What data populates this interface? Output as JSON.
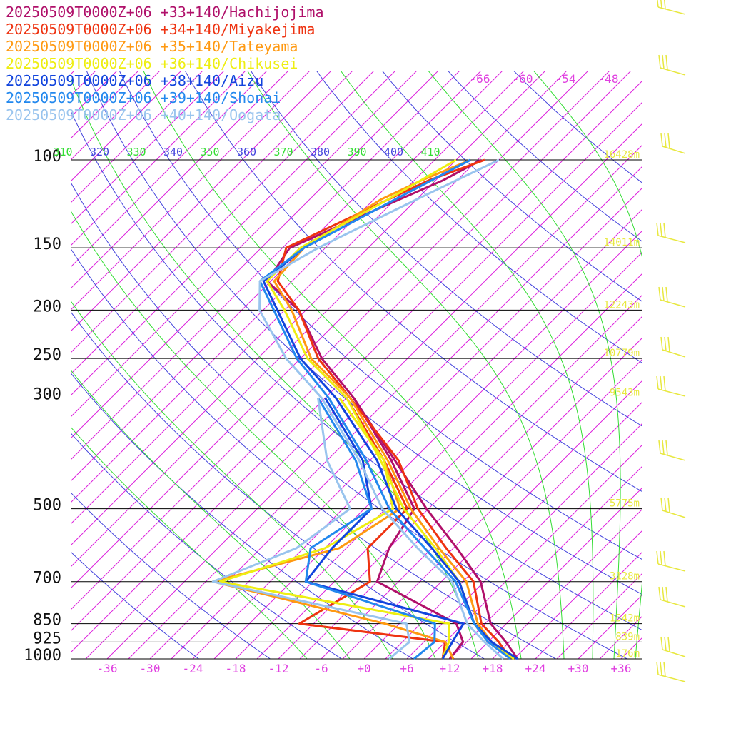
{
  "colors": {
    "isobar": "#000000",
    "isotherm": "#dd22dd",
    "dry_adiabat": "#4444dd",
    "moist_adiabat": "#33dd33",
    "height_label": "#e8e840",
    "wind_barb": "#e8e840"
  },
  "chart_data": {
    "type": "line",
    "subtype": "skew-T log-p sounding",
    "legend": [
      {
        "text": "20250509T0000Z+06 +33+140/Hachijojima",
        "color": "#b0106a"
      },
      {
        "text": "20250509T0000Z+06 +34+140/Miyakejima",
        "color": "#ee3311"
      },
      {
        "text": "20250509T0000Z+06 +35+140/Tateyama",
        "color": "#ff9911"
      },
      {
        "text": "20250509T0000Z+06 +36+140/Chikusei",
        "color": "#eeee11"
      },
      {
        "text": "20250509T0000Z+06 +38+140/Aizu",
        "color": "#1144dd"
      },
      {
        "text": "20250509T0000Z+06 +39+140/Shonai",
        "color": "#2288ee"
      },
      {
        "text": "20250509T0000Z+06 +40+140/Oogata",
        "color": "#99c4ee"
      }
    ],
    "pressure_levels": [
      {
        "p": 100,
        "label": "100",
        "height": "16428m"
      },
      {
        "p": 150,
        "label": "150",
        "height": "14011m"
      },
      {
        "p": 200,
        "label": "200",
        "height": "12243m"
      },
      {
        "p": 250,
        "label": "250",
        "height": "10779m"
      },
      {
        "p": 300,
        "label": "300",
        "height": "9543m"
      },
      {
        "p": 500,
        "label": "500",
        "height": "5775m"
      },
      {
        "p": 700,
        "label": "700",
        "height": "3128m"
      },
      {
        "p": 850,
        "label": "850",
        "height": "1542m"
      },
      {
        "p": 925,
        "label": "925",
        "height": "839m"
      },
      {
        "p": 1000,
        "label": "1000",
        "height": "176m"
      }
    ],
    "temperature_ticks": [
      "-36",
      "-30",
      "-24",
      "-18",
      "-12",
      "-6",
      "+0",
      "+6",
      "+12",
      "+18",
      "+24",
      "+30",
      "+36"
    ],
    "temperature_tick_values": [
      -36,
      -30,
      -24,
      -18,
      -12,
      -6,
      0,
      6,
      12,
      18,
      24,
      30,
      36
    ],
    "upper_temperature_labels": [
      "-66",
      "-60",
      "-54",
      "-48"
    ],
    "theta_labels": [
      {
        "text": "310",
        "kind": "moist"
      },
      {
        "text": "320",
        "kind": "dry"
      },
      {
        "text": "330",
        "kind": "moist"
      },
      {
        "text": "340",
        "kind": "dry"
      },
      {
        "text": "350",
        "kind": "moist"
      },
      {
        "text": "360",
        "kind": "dry"
      },
      {
        "text": "370",
        "kind": "moist"
      },
      {
        "text": "380",
        "kind": "dry"
      },
      {
        "text": "390",
        "kind": "moist"
      },
      {
        "text": "400",
        "kind": "dry"
      },
      {
        "text": "410",
        "kind": "moist"
      }
    ],
    "x_range_at_1000hPa": [
      -41,
      39
    ],
    "p_range": [
      1000,
      100
    ],
    "series": [
      {
        "name": "Hachijojima",
        "temperature": [
          [
            1000,
            21.5
          ],
          [
            925,
            17.5
          ],
          [
            850,
            12.8
          ],
          [
            700,
            5.5
          ],
          [
            600,
            -2.5
          ],
          [
            500,
            -12.3
          ],
          [
            400,
            -23.5
          ],
          [
            300,
            -38
          ],
          [
            250,
            -48
          ],
          [
            200,
            -58
          ],
          [
            175,
            -66.5
          ],
          [
            150,
            -68
          ],
          [
            125,
            -61
          ],
          [
            110,
            -56
          ],
          [
            100,
            -53.5
          ]
        ],
        "dewpoint": [
          [
            1000,
            12
          ],
          [
            925,
            11.5
          ],
          [
            850,
            8
          ],
          [
            700,
            -9
          ],
          [
            600,
            -12
          ],
          [
            500,
            -14
          ],
          [
            400,
            -24
          ],
          [
            300,
            -38
          ]
        ]
      },
      {
        "name": "Miyakejima",
        "temperature": [
          [
            1000,
            20.5
          ],
          [
            925,
            16.5
          ],
          [
            850,
            11.5
          ],
          [
            700,
            4.5
          ],
          [
            600,
            -4
          ],
          [
            500,
            -13.5
          ],
          [
            400,
            -23
          ],
          [
            300,
            -38.5
          ],
          [
            250,
            -48.5
          ],
          [
            200,
            -58
          ],
          [
            175,
            -65
          ],
          [
            150,
            -68.5
          ],
          [
            110,
            -58
          ],
          [
            100,
            -53
          ]
        ],
        "dewpoint": [
          [
            1000,
            11
          ],
          [
            925,
            9
          ],
          [
            850,
            -14
          ],
          [
            700,
            -10
          ],
          [
            600,
            -15
          ],
          [
            500,
            -15
          ],
          [
            400,
            -25
          ],
          [
            300,
            -39
          ]
        ]
      },
      {
        "name": "Tateyama",
        "temperature": [
          [
            1000,
            20.5
          ],
          [
            925,
            15.5
          ],
          [
            850,
            11
          ],
          [
            700,
            3.5
          ],
          [
            600,
            -5
          ],
          [
            500,
            -14.5
          ],
          [
            400,
            -24.5
          ],
          [
            300,
            -38.5
          ],
          [
            250,
            -49.5
          ],
          [
            200,
            -59
          ],
          [
            175,
            -65.5
          ],
          [
            150,
            -66
          ],
          [
            120,
            -62
          ],
          [
            110,
            -59
          ],
          [
            100,
            -55
          ]
        ],
        "dewpoint": [
          [
            1000,
            12.5
          ],
          [
            925,
            9
          ],
          [
            850,
            -2
          ],
          [
            700,
            -32
          ],
          [
            600,
            -19
          ],
          [
            500,
            -16
          ],
          [
            400,
            -25
          ],
          [
            300,
            -40
          ]
        ]
      },
      {
        "name": "Chikusei",
        "temperature": [
          [
            1000,
            21
          ],
          [
            925,
            15
          ],
          [
            850,
            10.5
          ],
          [
            700,
            2.5
          ],
          [
            600,
            -5.5
          ],
          [
            500,
            -15.5
          ],
          [
            400,
            -25.5
          ],
          [
            300,
            -39
          ],
          [
            250,
            -50
          ],
          [
            200,
            -60
          ],
          [
            175,
            -66.5
          ],
          [
            150,
            -66.5
          ],
          [
            120,
            -61
          ],
          [
            100,
            -57
          ]
        ],
        "dewpoint": [
          [
            1000,
            11
          ],
          [
            925,
            9.5
          ],
          [
            850,
            7
          ],
          [
            700,
            -31
          ],
          [
            600,
            -21
          ],
          [
            500,
            -17
          ],
          [
            400,
            -25
          ],
          [
            300,
            -40
          ]
        ]
      },
      {
        "name": "Aizu",
        "temperature": [
          [
            1000,
            21.5
          ],
          [
            925,
            15.5
          ],
          [
            850,
            10.5
          ],
          [
            700,
            2.5
          ],
          [
            600,
            -6
          ],
          [
            500,
            -16.5
          ],
          [
            400,
            -26
          ],
          [
            300,
            -40.5
          ],
          [
            250,
            -51
          ],
          [
            200,
            -61
          ],
          [
            175,
            -67
          ],
          [
            150,
            -66
          ],
          [
            120,
            -60
          ],
          [
            100,
            -55
          ]
        ],
        "dewpoint": [
          [
            1000,
            11
          ],
          [
            925,
            10
          ],
          [
            850,
            9
          ],
          [
            700,
            -19
          ],
          [
            600,
            -20
          ],
          [
            500,
            -20
          ],
          [
            400,
            -28
          ],
          [
            300,
            -42
          ]
        ]
      },
      {
        "name": "Shonai",
        "temperature": [
          [
            1000,
            20.5
          ],
          [
            925,
            15
          ],
          [
            850,
            10.5
          ],
          [
            700,
            2
          ],
          [
            600,
            -7
          ],
          [
            500,
            -17.5
          ],
          [
            400,
            -27.5
          ],
          [
            300,
            -41.5
          ],
          [
            250,
            -51.5
          ],
          [
            200,
            -61.5
          ],
          [
            175,
            -67.5
          ],
          [
            150,
            -66
          ],
          [
            120,
            -60
          ],
          [
            100,
            -55
          ]
        ],
        "dewpoint": [
          [
            1000,
            7
          ],
          [
            925,
            7.5
          ],
          [
            850,
            5
          ],
          [
            700,
            -19
          ],
          [
            600,
            -23
          ],
          [
            500,
            -20
          ],
          [
            400,
            -29
          ],
          [
            300,
            -43
          ]
        ]
      },
      {
        "name": "Oogata",
        "temperature": [
          [
            1000,
            19.5
          ],
          [
            925,
            14.5
          ],
          [
            850,
            9.5
          ],
          [
            700,
            1.5
          ],
          [
            600,
            -8
          ],
          [
            500,
            -18.5
          ],
          [
            400,
            -28.5
          ],
          [
            300,
            -42.5
          ],
          [
            250,
            -53
          ],
          [
            200,
            -63.5
          ],
          [
            175,
            -67.5
          ],
          [
            150,
            -64
          ],
          [
            120,
            -57
          ],
          [
            100,
            -51
          ]
        ],
        "dewpoint": [
          [
            1000,
            3.5
          ],
          [
            925,
            4
          ],
          [
            850,
            1
          ],
          [
            700,
            -32
          ],
          [
            600,
            -25
          ],
          [
            500,
            -23
          ],
          [
            400,
            -33
          ],
          [
            300,
            -43
          ]
        ]
      }
    ]
  }
}
